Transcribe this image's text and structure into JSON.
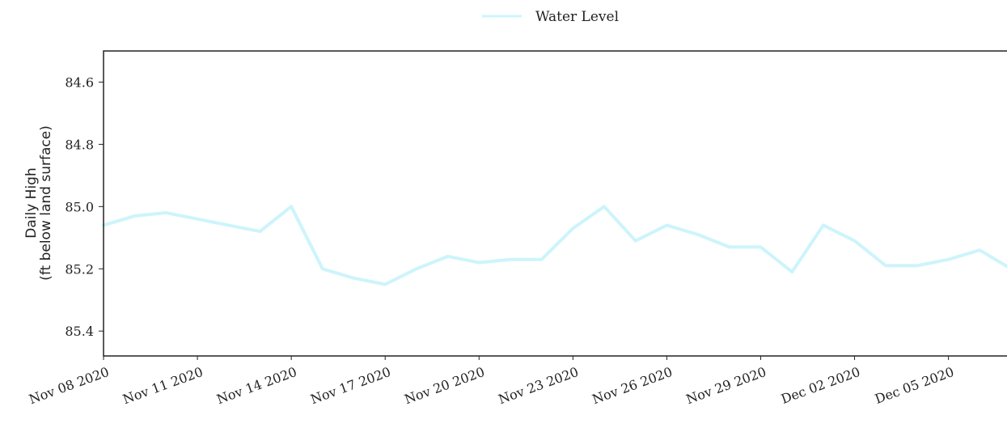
{
  "chart_data": {
    "type": "line",
    "title": "",
    "ylabel_lines": [
      "Daily High",
      "(ft below land surface)"
    ],
    "xlabel": "",
    "y_inverted": true,
    "ylim": [
      84.5,
      85.48
    ],
    "xlim": [
      "2020-11-08",
      "2020-12-07"
    ],
    "yticks": [
      84.6,
      84.8,
      85.0,
      85.2,
      85.4
    ],
    "ytick_labels": [
      "84.6",
      "84.8",
      "85.0",
      "85.2",
      "85.4"
    ],
    "xticks": [
      "2020-11-08",
      "2020-11-11",
      "2020-11-14",
      "2020-11-17",
      "2020-11-20",
      "2020-11-23",
      "2020-11-26",
      "2020-11-29",
      "2020-12-02",
      "2020-12-05"
    ],
    "xtick_labels": [
      "Nov 08 2020",
      "Nov 11 2020",
      "Nov 14 2020",
      "Nov 17 2020",
      "Nov 20 2020",
      "Nov 23 2020",
      "Nov 26 2020",
      "Nov 29 2020",
      "Dec 02 2020",
      "Dec 05 2020"
    ],
    "legend": {
      "position": "top-center",
      "label": "Water Level"
    },
    "grid": false,
    "series": [
      {
        "name": "Water Level",
        "color": "#cdf4fb",
        "x": [
          "2020-11-08",
          "2020-11-09",
          "2020-11-10",
          "2020-11-11",
          "2020-11-12",
          "2020-11-13",
          "2020-11-14",
          "2020-11-15",
          "2020-11-16",
          "2020-11-17",
          "2020-11-18",
          "2020-11-19",
          "2020-11-20",
          "2020-11-21",
          "2020-11-22",
          "2020-11-23",
          "2020-11-24",
          "2020-11-25",
          "2020-11-26",
          "2020-11-27",
          "2020-11-28",
          "2020-11-29",
          "2020-11-30",
          "2020-12-01",
          "2020-12-02",
          "2020-12-03",
          "2020-12-04",
          "2020-12-05",
          "2020-12-06",
          "2020-12-07"
        ],
        "values": [
          85.06,
          85.03,
          85.02,
          85.04,
          85.06,
          85.08,
          85.0,
          85.2,
          85.23,
          85.25,
          85.2,
          85.16,
          85.18,
          85.17,
          85.17,
          85.07,
          85.0,
          85.11,
          85.06,
          85.09,
          85.13,
          85.13,
          85.21,
          85.06,
          85.11,
          85.19,
          85.19,
          85.17,
          85.14,
          85.2
        ]
      }
    ]
  }
}
